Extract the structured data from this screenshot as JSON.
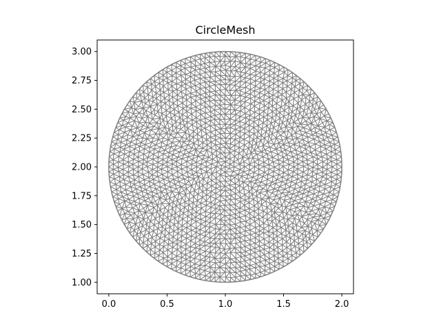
{
  "chart_data": {
    "type": "mesh",
    "title": "CircleMesh",
    "xlabel": "",
    "ylabel": "",
    "xlim": [
      -0.1,
      2.1
    ],
    "ylim": [
      0.9,
      3.1
    ],
    "xticks": [
      "0.0",
      "0.5",
      "1.0",
      "1.5",
      "2.0"
    ],
    "yticks": [
      "1.00",
      "1.25",
      "1.50",
      "1.75",
      "2.00",
      "2.25",
      "2.50",
      "2.75",
      "3.00"
    ],
    "circle": {
      "center": [
        1.0,
        2.0
      ],
      "radius": 1.0
    },
    "mesh_color": "#808080",
    "grid": false
  }
}
